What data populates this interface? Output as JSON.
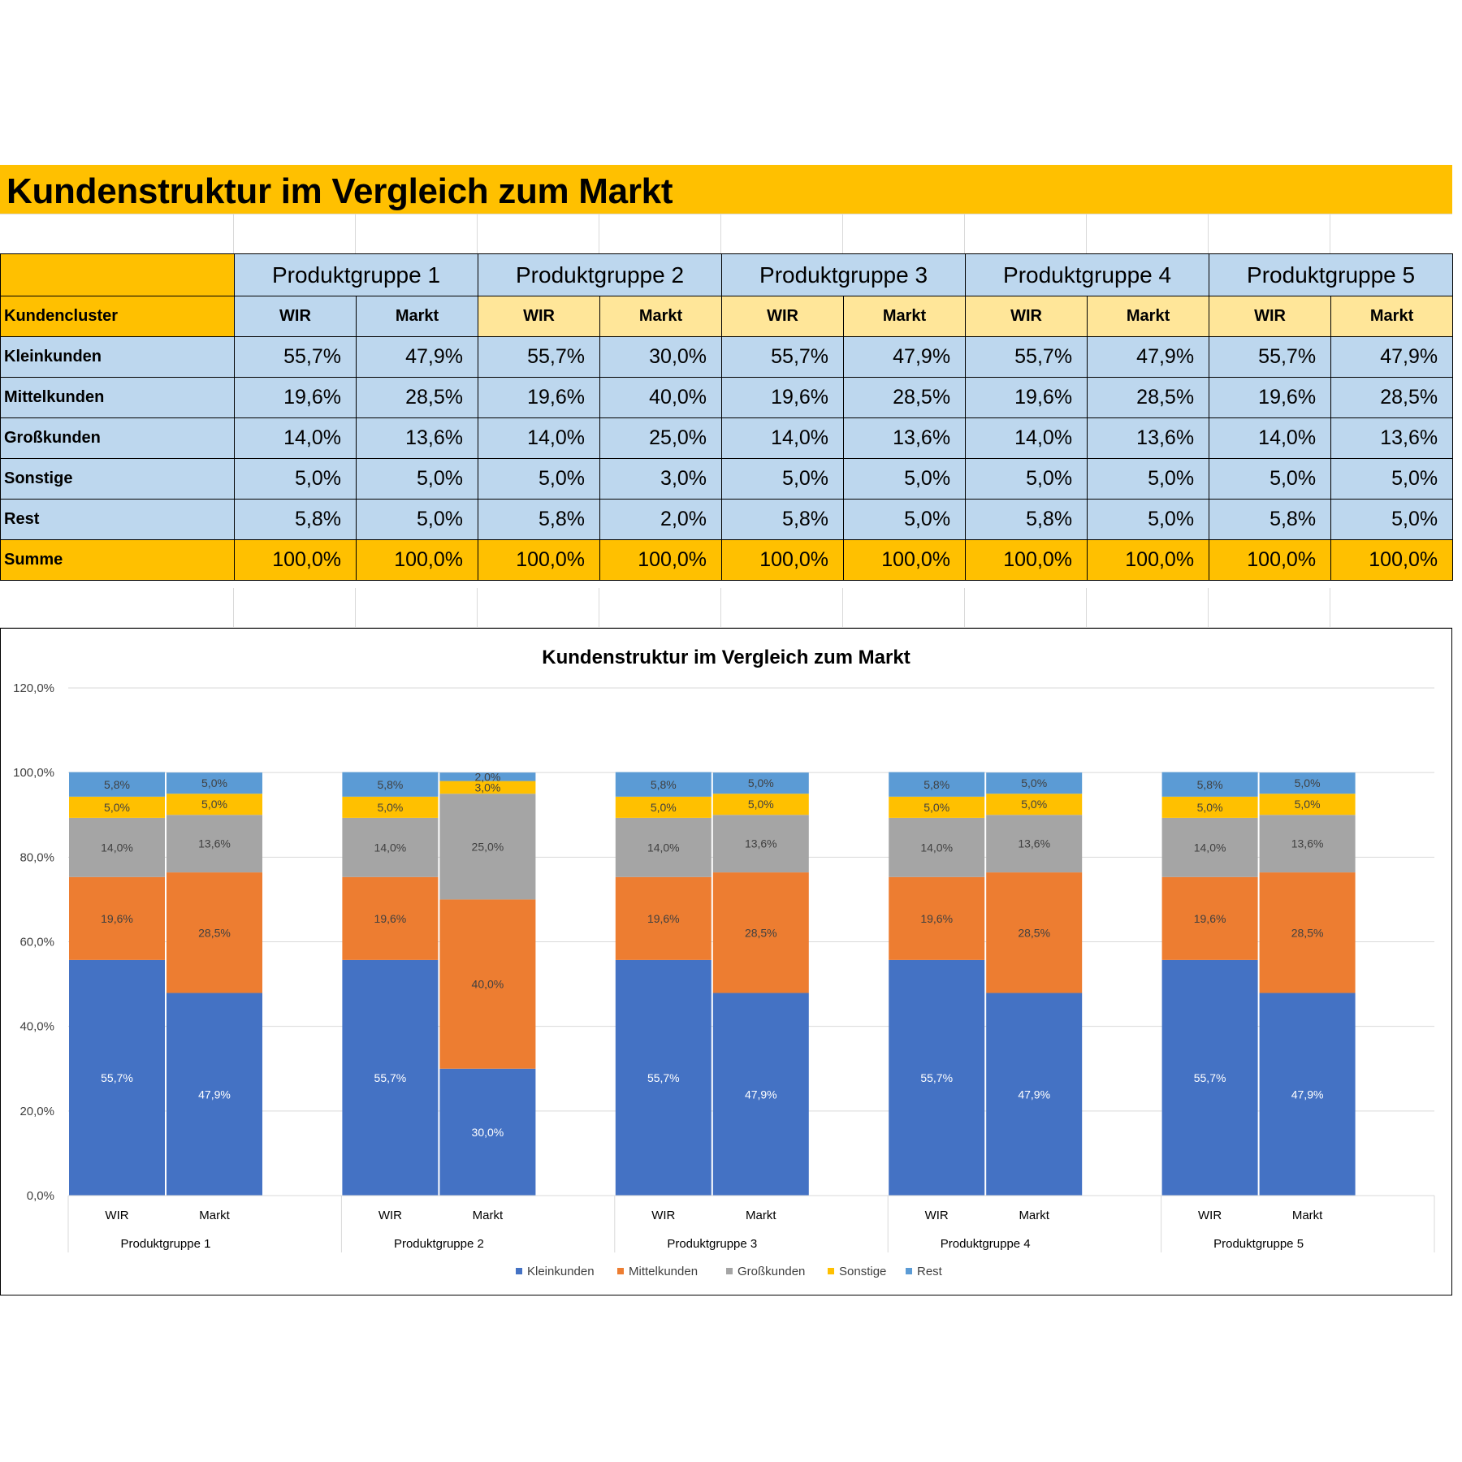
{
  "sheet_title": "Kundenstruktur im Vergleich zum Markt",
  "table": {
    "corner_label": "",
    "cluster_header": "Kundencluster",
    "groups": [
      "Produktgruppe 1",
      "Produktgruppe 2",
      "Produktgruppe 3",
      "Produktgruppe 4",
      "Produktgruppe 5"
    ],
    "sub_headers": [
      "WIR",
      "Markt",
      "WIR",
      "Markt",
      "WIR",
      "Markt",
      "WIR",
      "Markt",
      "WIR",
      "Markt"
    ],
    "rows": [
      {
        "label": "Kleinkunden",
        "values": [
          "55,7%",
          "47,9%",
          "55,7%",
          "30,0%",
          "55,7%",
          "47,9%",
          "55,7%",
          "47,9%",
          "55,7%",
          "47,9%"
        ]
      },
      {
        "label": "Mittelkunden",
        "values": [
          "19,6%",
          "28,5%",
          "19,6%",
          "40,0%",
          "19,6%",
          "28,5%",
          "19,6%",
          "28,5%",
          "19,6%",
          "28,5%"
        ]
      },
      {
        "label": "Großkunden",
        "values": [
          "14,0%",
          "13,6%",
          "14,0%",
          "25,0%",
          "14,0%",
          "13,6%",
          "14,0%",
          "13,6%",
          "14,0%",
          "13,6%"
        ]
      },
      {
        "label": "Sonstige",
        "values": [
          "5,0%",
          "5,0%",
          "5,0%",
          "3,0%",
          "5,0%",
          "5,0%",
          "5,0%",
          "5,0%",
          "5,0%",
          "5,0%"
        ]
      },
      {
        "label": "Rest",
        "values": [
          "5,8%",
          "5,0%",
          "5,8%",
          "2,0%",
          "5,8%",
          "5,0%",
          "5,8%",
          "5,0%",
          "5,8%",
          "5,0%"
        ]
      }
    ],
    "sum_row": {
      "label": "Summe",
      "values": [
        "100,0%",
        "100,0%",
        "100,0%",
        "100,0%",
        "100,0%",
        "100,0%",
        "100,0%",
        "100,0%",
        "100,0%",
        "100,0%"
      ]
    }
  },
  "chart_data": {
    "type": "bar",
    "stacked": true,
    "title": "Kundenstruktur im Vergleich zum Markt",
    "xlabel": "",
    "ylabel": "",
    "ylim": [
      0,
      120
    ],
    "y_ticks": [
      "0,0%",
      "20,0%",
      "40,0%",
      "60,0%",
      "80,0%",
      "100,0%",
      "120,0%"
    ],
    "y_tick_values": [
      0,
      20,
      40,
      60,
      80,
      100,
      120
    ],
    "groups": [
      "Produktgruppe 1",
      "Produktgruppe 2",
      "Produktgruppe 3",
      "Produktgruppe 4",
      "Produktgruppe 5"
    ],
    "categories": [
      "WIR",
      "Markt",
      "WIR",
      "Markt",
      "WIR",
      "Markt",
      "WIR",
      "Markt",
      "WIR",
      "Markt"
    ],
    "series": [
      {
        "name": "Kleinkunden",
        "color": "#4472C4",
        "label_color": "#ffffff",
        "values": [
          55.7,
          47.9,
          55.7,
          30.0,
          55.7,
          47.9,
          55.7,
          47.9,
          55.7,
          47.9
        ],
        "labels": [
          "55,7%",
          "47,9%",
          "55,7%",
          "30,0%",
          "55,7%",
          "47,9%",
          "55,7%",
          "47,9%",
          "55,7%",
          "47,9%"
        ]
      },
      {
        "name": "Mittelkunden",
        "color": "#ED7D31",
        "label_color": "#404040",
        "values": [
          19.6,
          28.5,
          19.6,
          40.0,
          19.6,
          28.5,
          19.6,
          28.5,
          19.6,
          28.5
        ],
        "labels": [
          "19,6%",
          "28,5%",
          "19,6%",
          "40,0%",
          "19,6%",
          "28,5%",
          "19,6%",
          "28,5%",
          "19,6%",
          "28,5%"
        ]
      },
      {
        "name": "Großkunden",
        "color": "#A5A5A5",
        "label_color": "#404040",
        "values": [
          14.0,
          13.6,
          14.0,
          25.0,
          14.0,
          13.6,
          14.0,
          13.6,
          14.0,
          13.6
        ],
        "labels": [
          "14,0%",
          "13,6%",
          "14,0%",
          "25,0%",
          "14,0%",
          "13,6%",
          "14,0%",
          "13,6%",
          "14,0%",
          "13,6%"
        ]
      },
      {
        "name": "Sonstige",
        "color": "#FFC000",
        "label_color": "#404040",
        "values": [
          5.0,
          5.0,
          5.0,
          3.0,
          5.0,
          5.0,
          5.0,
          5.0,
          5.0,
          5.0
        ],
        "labels": [
          "5,0%",
          "5,0%",
          "5,0%",
          "3,0%",
          "5,0%",
          "5,0%",
          "5,0%",
          "5,0%",
          "5,0%",
          "5,0%"
        ]
      },
      {
        "name": "Rest",
        "color": "#5B9BD5",
        "label_color": "#404040",
        "values": [
          5.8,
          5.0,
          5.8,
          2.0,
          5.8,
          5.0,
          5.8,
          5.0,
          5.8,
          5.0
        ],
        "labels": [
          "5,8%",
          "5,0%",
          "5,8%",
          "2,0%",
          "5,8%",
          "5,0%",
          "5,8%",
          "5,0%",
          "5,8%",
          "5,0%"
        ]
      }
    ],
    "legend_position": "bottom",
    "grid": true
  }
}
